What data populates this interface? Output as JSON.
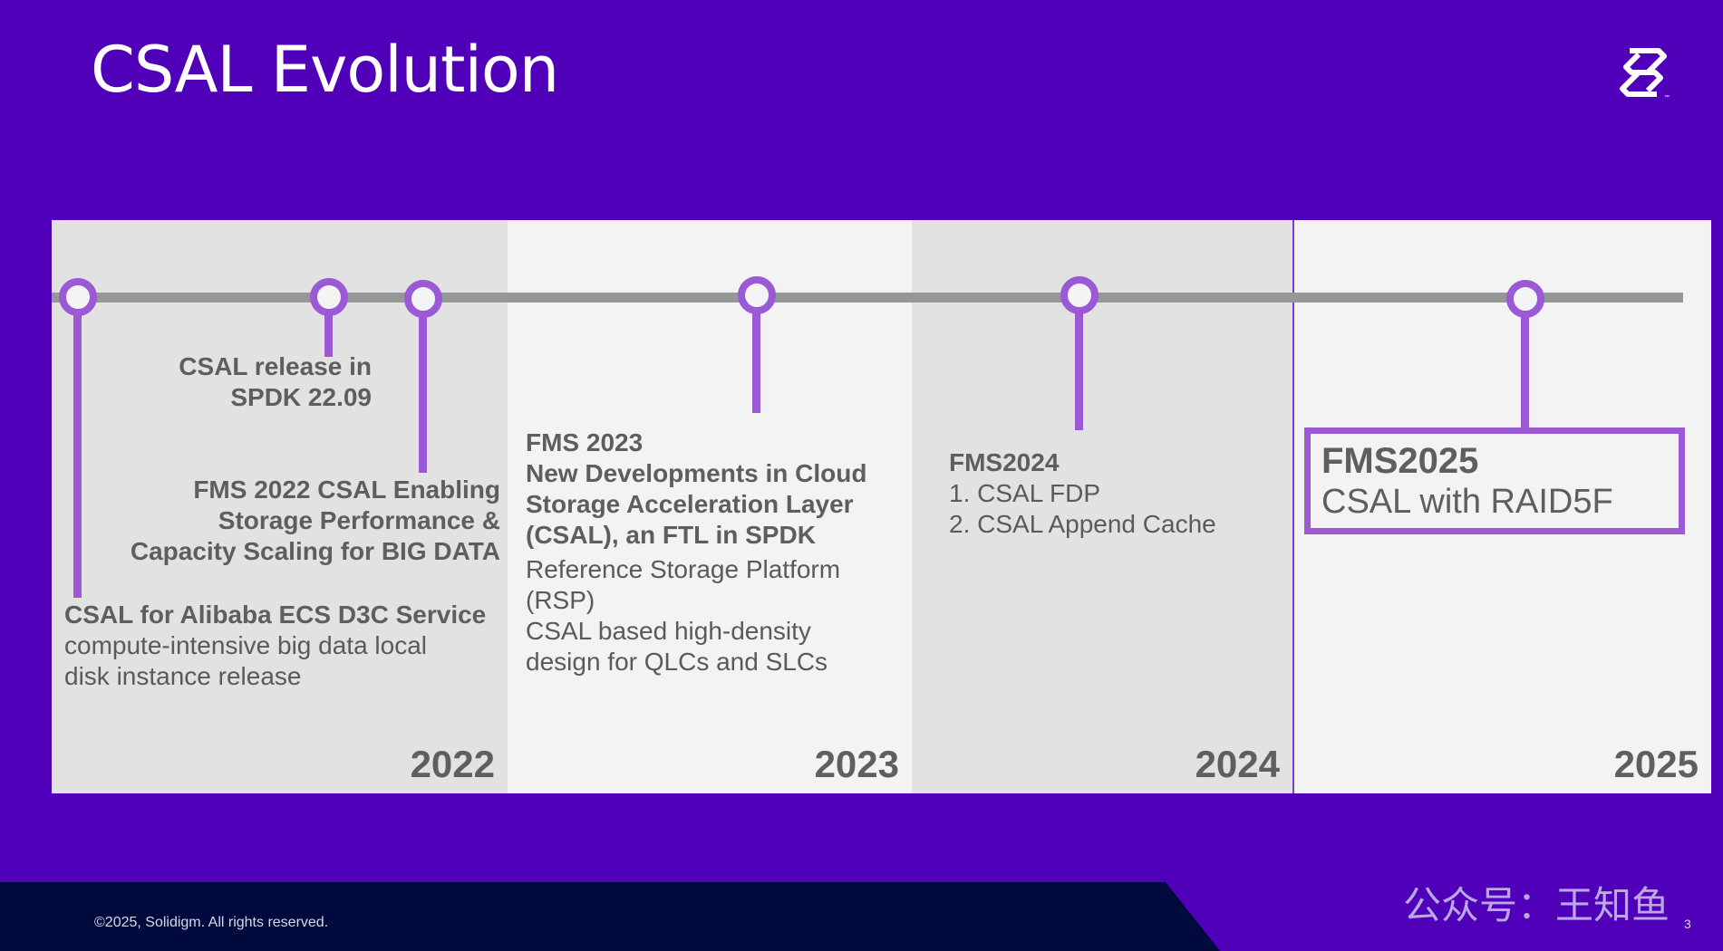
{
  "slide": {
    "title": "CSAL Evolution",
    "logo_icon": "solidigm-logo-icon",
    "page_number": "3",
    "copyright": "©2025, Solidigm. All rights reserved.",
    "watermark": "公众号：王知鱼"
  },
  "colors": {
    "background": "#5000b9",
    "accent": "#9b59d6",
    "footer": "#000a3c",
    "timeline": "#979797"
  },
  "years": [
    "2022",
    "2023",
    "2024",
    "2025"
  ],
  "events": {
    "alibaba": {
      "title": "CSAL for Alibaba ECS D3C Service",
      "line1": "compute-intensive big data local",
      "line2": "disk instance release"
    },
    "spdk": {
      "line1": "CSAL release in",
      "line2": "SPDK 22.09"
    },
    "fms2022": {
      "line1": "FMS 2022 CSAL Enabling",
      "line2": "Storage Performance &",
      "line3": "Capacity Scaling for BIG DATA"
    },
    "fms2023": {
      "title": "FMS 2023",
      "line1": "New Developments in Cloud",
      "line2": "Storage Acceleration Layer",
      "line3": "(CSAL), an FTL in SPDK",
      "line4": "Reference Storage Platform",
      "line5": "(RSP)",
      "line6": "CSAL based high-density",
      "line7": "design for QLCs and SLCs"
    },
    "fms2024": {
      "title": "FMS2024",
      "item1": "1. CSAL FDP",
      "item2": "2. CSAL Append Cache"
    },
    "fms2025": {
      "title": "FMS2025",
      "subtitle": "CSAL with RAID5F"
    }
  }
}
